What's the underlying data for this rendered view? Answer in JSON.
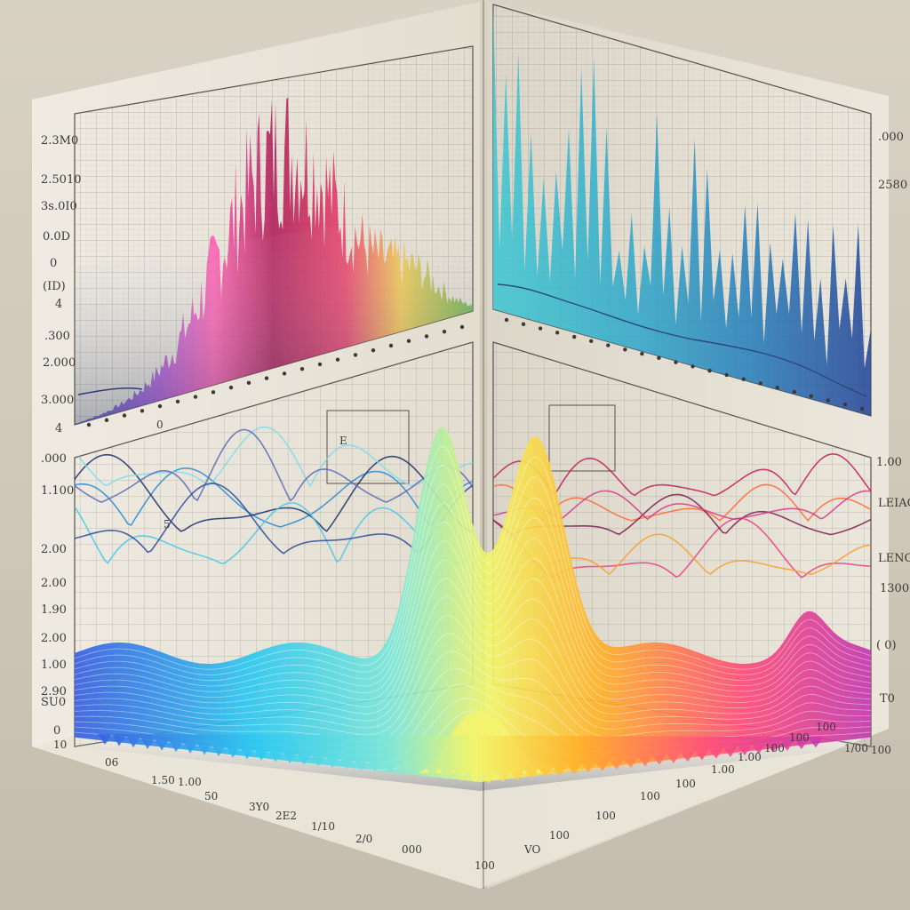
{
  "colors": {
    "paper": "#ebe6db",
    "grid": "#7d7a73",
    "spectrum": [
      "#3a5fe0",
      "#2ec8f0",
      "#7de6d8",
      "#f2f56a",
      "#ffb12a",
      "#ff4d7a",
      "#c23bb0"
    ],
    "left_panel_spectrum": [
      "#4a67c8",
      "#b35ad6",
      "#ff5fb0",
      "#b0205a",
      "#e8406a",
      "#f0c850",
      "#6ab04c"
    ],
    "right_panel_spectrum": [
      "#45c8d2",
      "#36a7c8",
      "#2e7fba",
      "#315fa6",
      "#2b4a9a"
    ]
  },
  "left_axis_labels": [
    "2.3M0",
    "2.5010",
    "3s.0I0",
    "0.0D",
    "0",
    "(ID)",
    "4",
    ".300",
    "2.000",
    "3.000",
    "4"
  ],
  "lower_left_axis_labels": [
    ".000",
    "1.100",
    "2.00",
    "2.00",
    "1.90",
    "2.00",
    "1.00",
    "2.90",
    "SU0",
    "0"
  ],
  "right_axis_labels": [
    ".000",
    "2580"
  ],
  "lower_right_axis_labels": [
    "1.00",
    "LEIAG",
    "LENG",
    "1300",
    "( 0)",
    "T0"
  ],
  "front_axis_labels": [
    "10",
    "06",
    "1.50",
    "1.00",
    "50",
    "3Y0",
    "2E2",
    "1/10",
    "2/0",
    "000",
    "100",
    "VO"
  ],
  "right_floor_labels": [
    "100",
    "100",
    "100",
    "100",
    "1.00",
    "1.00",
    "100",
    "100",
    "100",
    "1/00",
    "100"
  ],
  "misc_labels": [
    "0",
    "5",
    "E"
  ]
}
